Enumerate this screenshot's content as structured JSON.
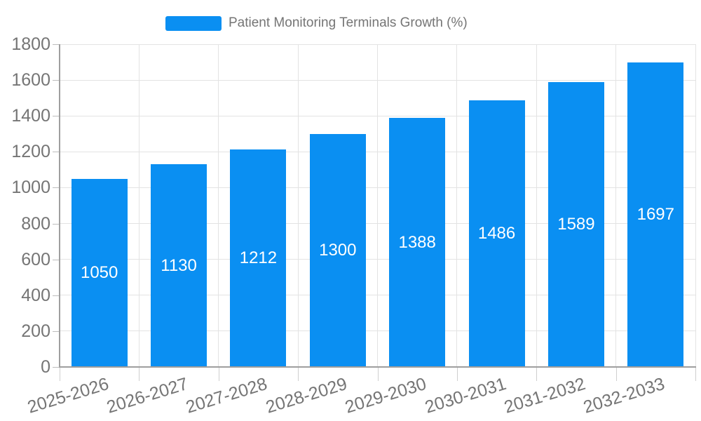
{
  "chart_data": {
    "type": "bar",
    "title": "Patient Monitoring Terminals Growth (%)",
    "legend_position": "top",
    "categories": [
      "2025-2026",
      "2026-2027",
      "2027-2028",
      "2028-2029",
      "2029-2030",
      "2030-2031",
      "2031-2032",
      "2032-2033"
    ],
    "values": [
      1050,
      1130,
      1212,
      1300,
      1388,
      1486,
      1589,
      1697
    ],
    "xlabel": "",
    "ylabel": "",
    "ylim": [
      0,
      1800
    ],
    "yticks": [
      0,
      200,
      400,
      600,
      800,
      1000,
      1200,
      1400,
      1600,
      1800
    ],
    "grid": true,
    "value_labels_inside_bars": true,
    "colors": {
      "bar": "#0a8ff2",
      "value_label": "#ffffff",
      "tick_label": "#757575",
      "legend_label": "#757575"
    }
  }
}
